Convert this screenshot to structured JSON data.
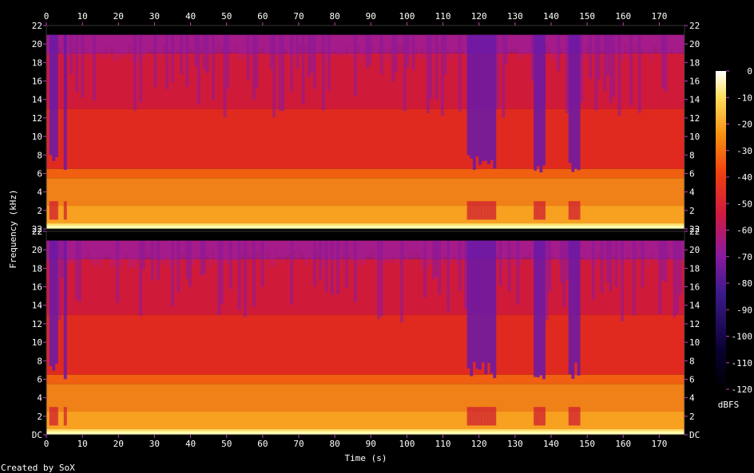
{
  "chart_data": {
    "type": "heatmap",
    "xlabel": "Time (s)",
    "ylabel": "Frequency (kHz)",
    "credit": "Created by SoX",
    "colorbar_label": "dBFS",
    "xlim": [
      0,
      177
    ],
    "ylim": [
      0,
      22
    ],
    "x_ticks": [
      0,
      10,
      20,
      30,
      40,
      50,
      60,
      70,
      80,
      90,
      100,
      110,
      120,
      130,
      140,
      150,
      160,
      170
    ],
    "y_ticks": [
      {
        "value": 0,
        "label": "DC"
      },
      {
        "value": 2,
        "label": "2"
      },
      {
        "value": 4,
        "label": "4"
      },
      {
        "value": 6,
        "label": "6"
      },
      {
        "value": 8,
        "label": "8"
      },
      {
        "value": 10,
        "label": "10"
      },
      {
        "value": 12,
        "label": "12"
      },
      {
        "value": 14,
        "label": "14"
      },
      {
        "value": 16,
        "label": "16"
      },
      {
        "value": 18,
        "label": "18"
      },
      {
        "value": 20,
        "label": "20"
      },
      {
        "value": 22,
        "label": "22"
      }
    ],
    "colorbar_ticks": [
      0,
      -10,
      -20,
      -30,
      -40,
      -50,
      -60,
      -70,
      -80,
      -90,
      -100,
      -110,
      -120
    ],
    "colorbar_range": [
      -120,
      0
    ],
    "channels": [
      {
        "id": "channel-1",
        "bottom_tick_label": "22"
      },
      {
        "id": "channel-2",
        "bottom_tick_label": "DC"
      }
    ],
    "colors": {
      "palette": [
        "#000000",
        "#1a0040",
        "#5a1a9e",
        "#a010a0",
        "#e01a30",
        "#f05010",
        "#f8a010",
        "#ffe060",
        "#ffffff"
      ],
      "background": "#000000",
      "tick": "#c040c0"
    }
  }
}
